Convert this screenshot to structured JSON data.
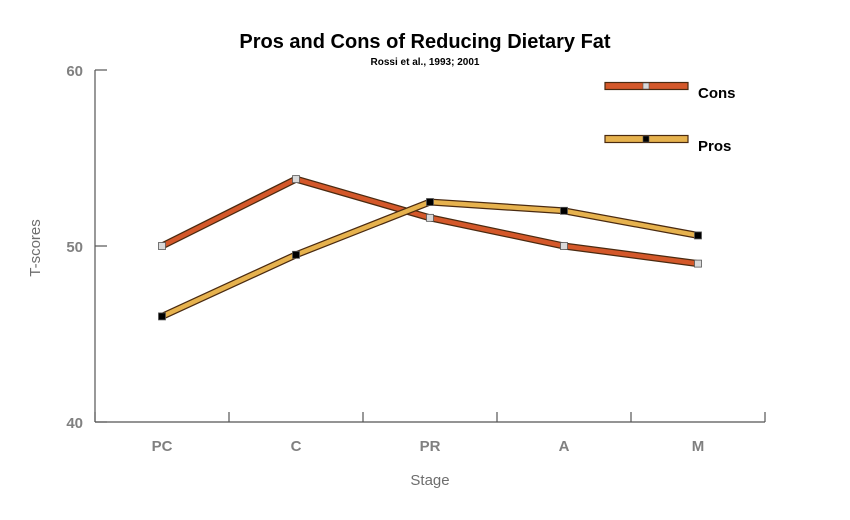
{
  "chart_data": {
    "type": "line",
    "title": "Pros and Cons of Reducing Dietary Fat",
    "subtitle": "Rossi et al., 1993; 2001",
    "xlabel": "Stage",
    "ylabel": "T-scores",
    "categories": [
      "PC",
      "C",
      "PR",
      "A",
      "M"
    ],
    "ylim": [
      40,
      60
    ],
    "yticks": [
      40,
      50,
      60
    ],
    "grid": false,
    "legend_position": "top-right",
    "series": [
      {
        "name": "Cons",
        "values": [
          50.0,
          53.8,
          51.6,
          50.0,
          49.0
        ],
        "color": "#d4582a",
        "marker_color": "#d9d9d9"
      },
      {
        "name": "Pros",
        "values": [
          46.0,
          49.5,
          52.5,
          52.0,
          50.6
        ],
        "color": "#e6b24e",
        "marker_color": "#000000"
      }
    ]
  }
}
